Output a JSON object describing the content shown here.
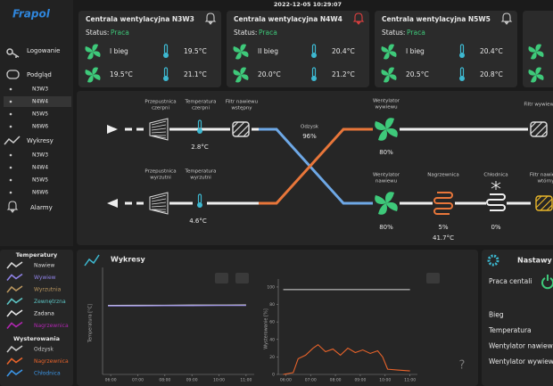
{
  "header": {
    "datetime": "2022-12-05 10:29:07"
  },
  "sidebar": {
    "logo": "Frapol",
    "login": "Logowanie",
    "preview": {
      "label": "Podgląd",
      "units": [
        "N3W3",
        "N4W4",
        "N5W5",
        "N6W6"
      ]
    },
    "charts": {
      "label": "Wykresy",
      "units": [
        "N3W3",
        "N4W4",
        "N5W5",
        "N6W6"
      ]
    },
    "alarms": "Alarmy"
  },
  "units": [
    {
      "title": "Centrala wentylacyjna N3W3",
      "status_label": "Status:",
      "status": "Praca",
      "gear": "I bieg",
      "temps": [
        "19.5°C",
        "19.5°C",
        "21.1°C"
      ]
    },
    {
      "title": "Centrala wentylacyjna N4W4",
      "status_label": "Status:",
      "status": "Praca",
      "gear": "II bieg",
      "temps": [
        "20.4°C",
        "20.0°C",
        "21.2°C"
      ]
    },
    {
      "title": "Centrala wentylacyjna N5W5",
      "status_label": "Status:",
      "status": "Praca",
      "gear": "I bieg",
      "temps": [
        "20.4°C",
        "20.5°C",
        "20.8°C"
      ]
    }
  ],
  "diagram": {
    "labels": [
      {
        "lines": [
          "Przepustnica",
          "czerpni"
        ]
      },
      {
        "lines": [
          "Temperatura",
          "czerpni"
        ]
      },
      {
        "lines": [
          "Filtr nawiewu",
          "wstępny"
        ]
      },
      {
        "lines": [
          "Odzysk"
        ]
      },
      {
        "lines": [
          "Wentylator",
          "wywiewu"
        ]
      },
      {
        "lines": [
          "Filtr wywiewu"
        ]
      },
      {
        "lines": [
          "Przepustnica",
          "wyrzutni"
        ]
      },
      {
        "lines": [
          "Temperatura",
          "wyrzutni"
        ]
      },
      {
        "lines": [
          "Wentylator",
          "nawiewu"
        ]
      },
      {
        "lines": [
          "Nagrzewnica"
        ]
      },
      {
        "lines": [
          "Chłodnica"
        ]
      },
      {
        "lines": [
          "Filtr nawiewu",
          "wtórny"
        ]
      }
    ],
    "values": [
      "2.8°C",
      "96%",
      "80%",
      "4.6°C",
      "80%",
      "5%",
      "41.7°C",
      "0%"
    ]
  },
  "legend": {
    "temperatures": {
      "title": "Temperatury",
      "items": [
        {
          "name": "Nawiew",
          "color": "#d8d8d8"
        },
        {
          "name": "Wywiew",
          "color": "#8f82e6"
        },
        {
          "name": "Wyrzutnia",
          "color": "#b8955e"
        },
        {
          "name": "Zewnętrzna",
          "color": "#5cc4c4"
        },
        {
          "name": "Zadana",
          "color": "#e6e6e6"
        },
        {
          "name": "Nagrzewnica",
          "color": "#b026b0"
        }
      ]
    },
    "controls": {
      "title": "Wysterowania",
      "items": [
        {
          "name": "Odzysk",
          "color": "#c8c8c8"
        },
        {
          "name": "Nagrzewnica",
          "color": "#e8632a"
        },
        {
          "name": "Chłodnica",
          "color": "#3b95e6"
        }
      ]
    }
  },
  "charts": {
    "title": "Wykresy",
    "help": "?",
    "chart_data": [
      {
        "type": "line",
        "y_label": "Temperatura [°C]",
        "x": [
          5.9,
          7,
          8,
          9,
          10,
          11.0
        ],
        "xlim": [
          5.7,
          11.3
        ],
        "ylim": [
          -20,
          40
        ],
        "xticks": [
          {
            "value": 6,
            "label": "06:00"
          },
          {
            "value": 7,
            "label": "07:00"
          },
          {
            "value": 8,
            "label": "08:00"
          },
          {
            "value": 9,
            "label": "09:00"
          },
          {
            "value": 10,
            "label": "10:00"
          },
          {
            "value": 11,
            "label": "11:00"
          }
        ],
        "series": [
          {
            "name": "Nawiew",
            "color": "#d8d8d8",
            "values": [
              20.4,
              20.5,
              20.5,
              20.6,
              20.6,
              20.7
            ]
          },
          {
            "name": "Wywiew",
            "color": "#8f82e6",
            "values": [
              20.1,
              20.1,
              20.2,
              20.2,
              20.3,
              20.3
            ]
          }
        ]
      },
      {
        "type": "line",
        "y_label": "Wysterowanie [%]",
        "x": [
          5.9,
          6.3,
          6.5,
          6.8,
          7.1,
          7.3,
          7.6,
          7.9,
          8.2,
          8.5,
          8.8,
          9.1,
          9.4,
          9.7,
          9.9,
          10.1,
          10.5,
          11.0
        ],
        "xlim": [
          5.7,
          11.3
        ],
        "ylim": [
          0,
          104
        ],
        "yticks": [
          0,
          20,
          40,
          60,
          80,
          100
        ],
        "xticks": [
          {
            "value": 6,
            "label": "06:00"
          },
          {
            "value": 7,
            "label": "07:00"
          },
          {
            "value": 8,
            "label": "08:00"
          },
          {
            "value": 9,
            "label": "09:00"
          },
          {
            "value": 10,
            "label": "10:00"
          },
          {
            "value": 11,
            "label": "11:00"
          }
        ],
        "series": [
          {
            "name": "Odzysk",
            "color": "#d8d8d8",
            "values": [
              97,
              97,
              97,
              97,
              97,
              97,
              97,
              97,
              97,
              97,
              97,
              97,
              97,
              97,
              97,
              97,
              97,
              97
            ]
          },
          {
            "name": "Nagrzewnica",
            "color": "#e8632a",
            "values": [
              0,
              2,
              18,
              22,
              30,
              34,
              26,
              29,
              22,
              30,
              25,
              28,
              24,
              27,
              20,
              6,
              5,
              4
            ]
          }
        ]
      }
    ]
  },
  "settings": {
    "title": "Nastawy",
    "items": [
      "Praca centali",
      "Bieg",
      "Temperatura",
      "Wentylator nawiewu",
      "Wentylator wywiewu"
    ]
  }
}
